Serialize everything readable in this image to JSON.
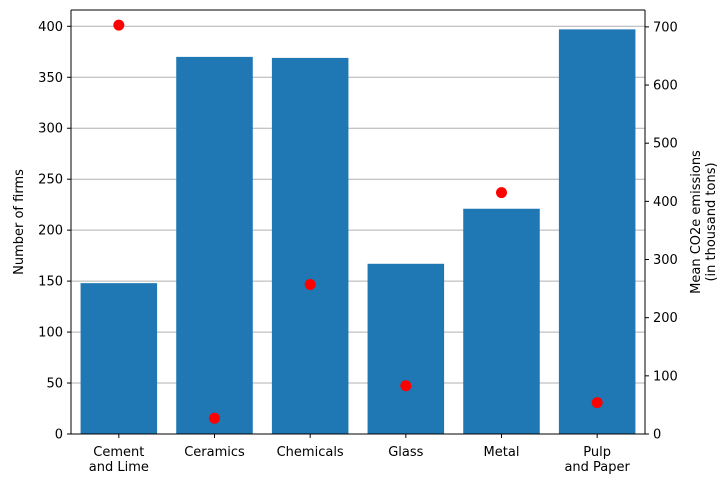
{
  "chart_data": {
    "type": "bar",
    "categories": [
      [
        "Cement",
        "and Lime"
      ],
      [
        "Ceramics"
      ],
      [
        "Chemicals"
      ],
      [
        "Glass"
      ],
      [
        "Metal"
      ],
      [
        "Pulp",
        "and Paper"
      ]
    ],
    "series": [
      {
        "type": "bar",
        "axis": "left",
        "values": [
          148,
          370,
          369,
          167,
          221,
          397
        ]
      },
      {
        "type": "scatter",
        "axis": "right",
        "values": [
          703,
          27,
          257,
          83,
          415,
          54
        ]
      }
    ],
    "ylabel_left": "Number of firms",
    "ylabel_right": [
      "Mean CO2e emissions",
      "(in thousand tons)"
    ],
    "ylim_left": [
      0,
      416
    ],
    "ylim_right": [
      0,
      729
    ],
    "yticks_left": [
      0,
      50,
      100,
      150,
      200,
      250,
      300,
      350,
      400
    ],
    "yticks_right": [
      0,
      100,
      200,
      300,
      400,
      500,
      600,
      700
    ],
    "grid": "horizontal",
    "colors": {
      "bar": "#1f77b4",
      "point": "#ff0000",
      "grid": "#b0b0b0"
    }
  }
}
